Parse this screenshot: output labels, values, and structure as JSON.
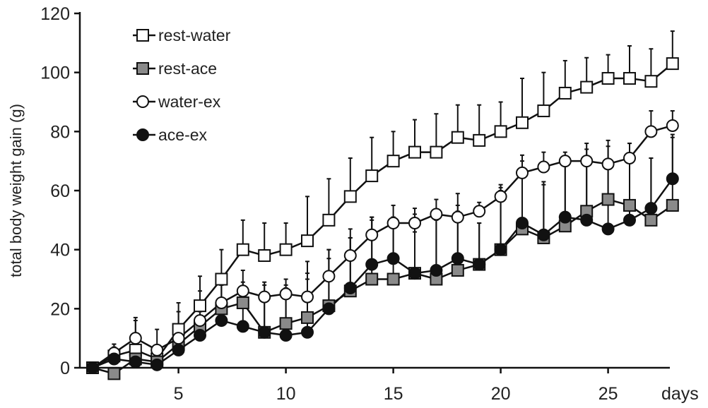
{
  "chart_data": {
    "type": "line",
    "title": "",
    "xlabel": "days",
    "ylabel": "total body weight gain (g)",
    "xlim": [
      0.5,
      28
    ],
    "ylim": [
      0,
      120
    ],
    "x_ticks": [
      5,
      10,
      15,
      20,
      25
    ],
    "y_ticks": [
      0,
      20,
      40,
      60,
      80,
      100,
      120
    ],
    "grid": false,
    "legend_position": "top-left",
    "x": [
      1,
      2,
      3,
      4,
      5,
      6,
      7,
      8,
      9,
      10,
      11,
      12,
      13,
      14,
      15,
      16,
      17,
      18,
      19,
      20,
      21,
      22,
      23,
      24,
      25,
      26,
      27,
      28
    ],
    "series": [
      {
        "name": "rest-water",
        "marker": "square-open",
        "fill": "#ffffff",
        "values": [
          0,
          4,
          6,
          3,
          13,
          21,
          30,
          40,
          38,
          40,
          43,
          50,
          58,
          65,
          70,
          73,
          73,
          78,
          77,
          80,
          83,
          87,
          93,
          95,
          98,
          98,
          97,
          103
        ],
        "errors": [
          0,
          4,
          10,
          4,
          9,
          10,
          10,
          10,
          11,
          9,
          15,
          14,
          13,
          13,
          10,
          11,
          13,
          11,
          12,
          10,
          15,
          13,
          11,
          10,
          8,
          11,
          11,
          11
        ]
      },
      {
        "name": "rest-ace",
        "marker": "square-filled",
        "fill": "#8a8a8a",
        "values": [
          0,
          -2,
          3,
          2,
          8,
          14,
          20,
          22,
          12,
          15,
          17,
          21,
          26,
          30,
          30,
          32,
          30,
          33,
          35,
          40,
          47,
          44,
          48,
          53,
          57,
          55,
          50,
          55
        ],
        "errors": [
          0,
          2,
          5,
          4,
          6,
          6,
          8,
          7,
          12,
          13,
          19,
          19,
          18,
          20,
          21,
          22,
          22,
          22,
          14,
          20,
          25,
          19,
          22,
          23,
          20,
          21,
          21,
          24
        ]
      },
      {
        "name": "water-ex",
        "marker": "circle-open",
        "fill": "#ffffff",
        "values": [
          0,
          5,
          10,
          6,
          10,
          16,
          22,
          26,
          24,
          25,
          24,
          31,
          38,
          45,
          49,
          49,
          52,
          51,
          53,
          58,
          66,
          68,
          70,
          70,
          69,
          71,
          80,
          82
        ],
        "errors": [
          0,
          3,
          7,
          7,
          9,
          10,
          9,
          7,
          5,
          5,
          8,
          9,
          9,
          6,
          2,
          3,
          5,
          8,
          3,
          4,
          4,
          5,
          3,
          4,
          6,
          5,
          7,
          5
        ]
      },
      {
        "name": "ace-ex",
        "marker": "circle-filled",
        "fill": "#111111",
        "values": [
          0,
          3,
          2,
          1,
          6,
          11,
          16,
          14,
          12,
          11,
          12,
          20,
          27,
          35,
          37,
          32,
          33,
          37,
          35,
          40,
          49,
          45,
          51,
          50,
          47,
          50,
          54,
          64
        ],
        "errors": [
          0,
          4,
          3,
          4,
          6,
          8,
          12,
          12,
          16,
          16,
          18,
          17,
          17,
          16,
          18,
          14,
          17,
          16,
          14,
          21,
          18,
          17,
          19,
          21,
          21,
          21,
          17,
          14
        ]
      }
    ]
  }
}
